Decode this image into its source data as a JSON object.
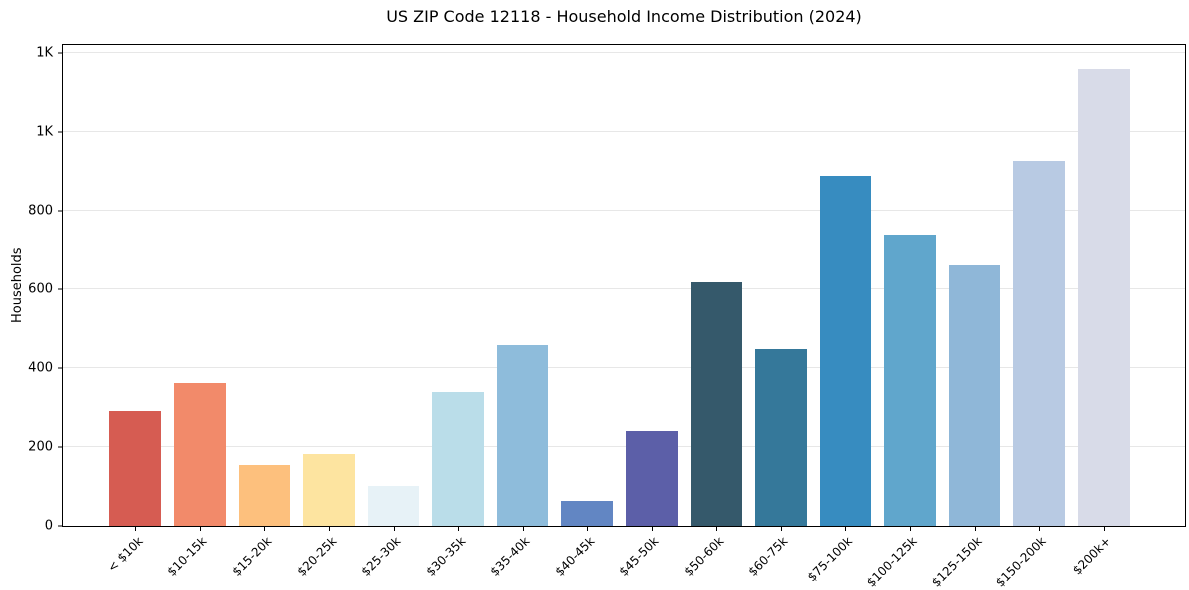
{
  "figure": {
    "title": "US ZIP Code 12118 - Household Income Distribution (2024)",
    "ylabel": "Households"
  },
  "chart_data": {
    "type": "bar",
    "title": "US ZIP Code 12118 - Household Income Distribution (2024)",
    "xlabel": "",
    "ylabel": "Households",
    "categories": [
      "< $10k",
      "$10-15k",
      "$15-20k",
      "$20-25k",
      "$25-30k",
      "$30-35k",
      "$35-40k",
      "$40-45k",
      "$45-50k",
      "$50-60k",
      "$60-75k",
      "$75-100k",
      "$100-125k",
      "$125-150k",
      "$150-200k",
      "$200k+"
    ],
    "values": [
      292,
      363,
      154,
      182,
      101,
      341,
      458,
      63,
      242,
      620,
      448,
      888,
      737,
      663,
      925,
      1160
    ],
    "bar_colors": [
      "#d65c52",
      "#f28a6a",
      "#fdc07d",
      "#fde4a0",
      "#e7f2f7",
      "#badde9",
      "#8ebcdb",
      "#6286c3",
      "#5c5fa8",
      "#35596b",
      "#35789a",
      "#378cc0",
      "#60a6cc",
      "#8fb7d8",
      "#b8cae3",
      "#d8dbe8"
    ],
    "ylim": [
      0,
      1220
    ],
    "ytick_values": [
      0,
      200,
      400,
      600,
      800,
      1000,
      1200
    ],
    "ytick_labels": [
      "0",
      "200",
      "400",
      "600",
      "800",
      "1K",
      "1K"
    ],
    "bar_width_fraction": 0.8,
    "grid": "horizontal",
    "legend": "none",
    "colors": {
      "gridline": "#e7e7e7",
      "frame": "#000000",
      "background": "#ffffff",
      "text": "#000000"
    }
  }
}
